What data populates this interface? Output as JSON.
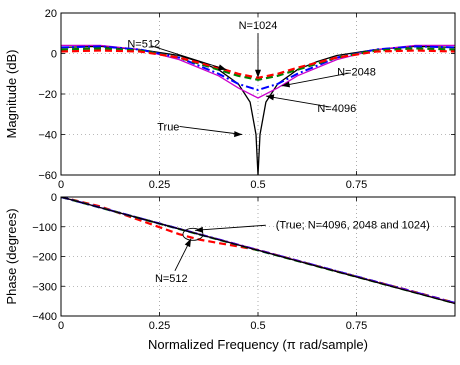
{
  "chart_data": [
    {
      "type": "line",
      "xlabel": "",
      "ylabel": "Magnitude (dB)",
      "xlim": [
        0,
        1
      ],
      "ylim": [
        -60,
        20
      ],
      "x_ticks": [
        0,
        0.25,
        0.5,
        0.75
      ],
      "x_tick_labels": [
        "0",
        "0.25",
        "0.5",
        "0.75"
      ],
      "y_ticks": [
        -60,
        -40,
        -20,
        0,
        20
      ],
      "y_tick_labels": [
        "−60",
        "−40",
        "−20",
        "0",
        "20"
      ],
      "grid": true,
      "series": [
        {
          "name": "True",
          "color": "#000000",
          "style": "solid",
          "x": [
            0,
            0.1,
            0.2,
            0.3,
            0.35,
            0.4,
            0.45,
            0.48,
            0.495,
            0.5,
            0.505,
            0.52,
            0.55,
            0.6,
            0.65,
            0.7,
            0.8,
            0.9,
            1.0
          ],
          "y": [
            3,
            3.5,
            2,
            -1,
            -4,
            -8,
            -15,
            -24,
            -40,
            -60,
            -40,
            -24,
            -15,
            -8,
            -4,
            -1,
            2,
            3.5,
            3
          ]
        },
        {
          "name": "N=4096",
          "color": "#cc00cc",
          "style": "solid",
          "x": [
            0,
            0.1,
            0.2,
            0.3,
            0.4,
            0.45,
            0.5,
            0.55,
            0.6,
            0.7,
            0.8,
            0.9,
            1.0
          ],
          "y": [
            4,
            4,
            2,
            -3,
            -11,
            -17,
            -22,
            -17,
            -11,
            -3,
            2,
            4,
            4
          ]
        },
        {
          "name": "N=2048",
          "color": "#0000ff",
          "style": "dashdot",
          "x": [
            0,
            0.1,
            0.2,
            0.3,
            0.4,
            0.45,
            0.5,
            0.55,
            0.6,
            0.7,
            0.8,
            0.9,
            1.0
          ],
          "y": [
            3,
            3.5,
            2,
            -2,
            -10,
            -15,
            -18,
            -15,
            -10,
            -2,
            2,
            3.5,
            3
          ]
        },
        {
          "name": "N=1024",
          "color": "#008000",
          "style": "dashed",
          "x": [
            0,
            0.1,
            0.2,
            0.3,
            0.4,
            0.45,
            0.5,
            0.55,
            0.6,
            0.7,
            0.8,
            0.9,
            1.0
          ],
          "y": [
            2,
            2.5,
            1.5,
            -2,
            -8,
            -11,
            -13,
            -11,
            -8,
            -2,
            1.5,
            2.5,
            2
          ]
        },
        {
          "name": "N=512",
          "color": "#ff0000",
          "style": "dashed",
          "x": [
            0,
            0.1,
            0.2,
            0.3,
            0.4,
            0.45,
            0.5,
            0.55,
            0.6,
            0.7,
            0.8,
            0.9,
            1.0
          ],
          "y": [
            1,
            1.5,
            1,
            -2,
            -7,
            -10,
            -12,
            -10,
            -7,
            -2,
            1,
            1.5,
            1
          ]
        }
      ],
      "annotations": [
        {
          "text": "N=512",
          "target_x": 0.42,
          "target_y": -8,
          "label_x": 0.21,
          "label_y": 5
        },
        {
          "text": "N=1024",
          "target_x": 0.5,
          "target_y": -12,
          "label_x": 0.5,
          "label_y": 14
        },
        {
          "text": "N=2048",
          "target_x": 0.56,
          "target_y": -16,
          "label_x": 0.75,
          "label_y": -9
        },
        {
          "text": "N=4096",
          "target_x": 0.52,
          "target_y": -21,
          "label_x": 0.7,
          "label_y": -27
        },
        {
          "text": "True",
          "target_x": 0.46,
          "target_y": -40,
          "label_x": 0.26,
          "label_y": -38
        }
      ]
    },
    {
      "type": "line",
      "xlabel": "Normalized Frequency  (π  rad/sample)",
      "ylabel": "Phase (degrees)",
      "xlim": [
        0,
        1
      ],
      "ylim": [
        -400,
        0
      ],
      "x_ticks": [
        0,
        0.25,
        0.5,
        0.75
      ],
      "x_tick_labels": [
        "0",
        "0.25",
        "0.5",
        "0.75"
      ],
      "y_ticks": [
        -400,
        -300,
        -200,
        -100,
        0
      ],
      "y_tick_labels": [
        "−400",
        "−300",
        "−200",
        "−100",
        "0"
      ],
      "grid": true,
      "series": [
        {
          "name": "N=512",
          "color": "#ff0000",
          "style": "dashed",
          "x": [
            0,
            0.1,
            0.2,
            0.3,
            0.35,
            0.4,
            0.45,
            0.5,
            0.6,
            0.7,
            0.8,
            0.9,
            1.0
          ],
          "y": [
            0,
            -32,
            -78,
            -125,
            -143,
            -155,
            -166,
            -178,
            -214,
            -250,
            -285,
            -320,
            -356
          ]
        },
        {
          "name": "N=1024",
          "color": "#008000",
          "style": "dashed",
          "x": [
            0,
            0.5,
            1.0
          ],
          "y": [
            0,
            -179,
            -357
          ]
        },
        {
          "name": "N=2048",
          "color": "#0000ff",
          "style": "dashdot",
          "x": [
            0,
            0.5,
            1.0
          ],
          "y": [
            0,
            -178,
            -356
          ]
        },
        {
          "name": "N=4096",
          "color": "#cc00cc",
          "style": "solid",
          "x": [
            0,
            0.5,
            1.0
          ],
          "y": [
            0,
            -178,
            -357
          ]
        },
        {
          "name": "True",
          "color": "#000000",
          "style": "solid",
          "x": [
            0,
            0.5,
            1.0
          ],
          "y": [
            0,
            -179,
            -358
          ]
        }
      ],
      "annotations": [
        {
          "text": "(True; N=4096, 2048 and 1024)",
          "target_x": 0.34,
          "target_y": -112,
          "label_x": 0.54,
          "label_y": -93
        },
        {
          "text": "N=512",
          "target_x": 0.33,
          "target_y": -140,
          "label_x": 0.28,
          "label_y": -272
        }
      ]
    }
  ]
}
